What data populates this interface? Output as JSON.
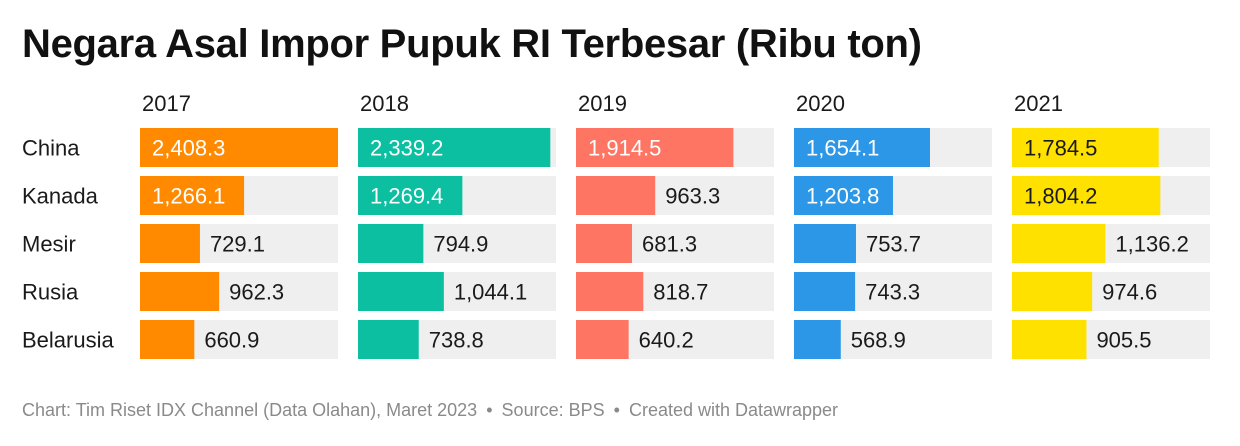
{
  "chart_data": {
    "type": "bar",
    "title": "Negara Asal Impor Pupuk RI Terbesar (Ribu ton)",
    "categories": [
      "China",
      "Kanada",
      "Mesir",
      "Rusia",
      "Belarusia"
    ],
    "series": [
      {
        "name": "2017",
        "color": "#ff8a00",
        "values": [
          2408.3,
          1266.1,
          729.1,
          962.3,
          660.9
        ],
        "labels": [
          "2,408.3",
          "1,266.1",
          "729.1",
          "962.3",
          "660.9"
        ]
      },
      {
        "name": "2018",
        "color": "#0bbfa0",
        "values": [
          2339.2,
          1269.4,
          794.9,
          1044.1,
          738.8
        ],
        "labels": [
          "2,339.2",
          "1,269.4",
          "794.9",
          "1,044.1",
          "738.8"
        ]
      },
      {
        "name": "2019",
        "color": "#ff7563",
        "values": [
          1914.5,
          963.3,
          681.3,
          818.7,
          640.2
        ],
        "labels": [
          "1,914.5",
          "963.3",
          "681.3",
          "818.7",
          "640.2"
        ]
      },
      {
        "name": "2020",
        "color": "#2b97e6",
        "values": [
          1654.1,
          1203.8,
          753.7,
          743.3,
          568.9
        ],
        "labels": [
          "1,654.1",
          "1,203.8",
          "753.7",
          "743.3",
          "568.9"
        ]
      },
      {
        "name": "2021",
        "color": "#ffe100",
        "values": [
          1784.5,
          1804.2,
          1136.2,
          974.6,
          905.5
        ],
        "labels": [
          "1,784.5",
          "1,804.2",
          "1,136.2",
          "974.6",
          "905.5"
        ]
      }
    ],
    "xlim": [
      0,
      2408.3
    ],
    "track_color": "#efefef",
    "layout": "small-multiples"
  },
  "footer": {
    "credit": "Chart: Tim Riset IDX Channel (Data Olahan), Maret 2023",
    "source": "Source: BPS",
    "created": "Created with Datawrapper",
    "separator": "•"
  }
}
